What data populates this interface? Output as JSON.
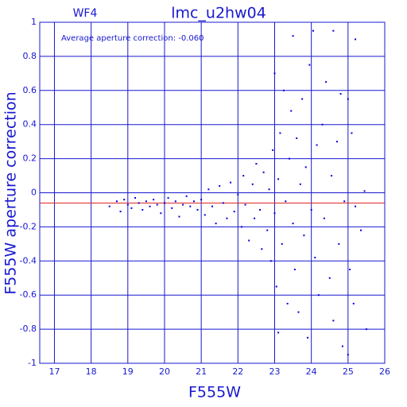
{
  "chart_data": {
    "type": "scatter",
    "title": "lmc_u2hw04",
    "subtitle": "WF4",
    "annotation": "Average aperture correction: -0.060",
    "x_label": "F555W",
    "y_label": "F555W aperture correction",
    "color": "#0000e0",
    "average": -0.06,
    "average_color": "#e02020",
    "grid": true,
    "xlim": [
      16.6,
      26
    ],
    "ylim": [
      -1,
      1
    ],
    "xticks": [
      17,
      18,
      19,
      20,
      21,
      22,
      23,
      24,
      25,
      26
    ],
    "yticks": [
      -1,
      -0.8,
      -0.6,
      -0.4,
      -0.2,
      0,
      0.2,
      0.4,
      0.6,
      0.8,
      1
    ],
    "x": [
      18.5,
      18.7,
      18.8,
      18.9,
      19.0,
      19.1,
      19.2,
      19.3,
      19.4,
      19.5,
      19.6,
      19.7,
      19.8,
      19.9,
      20.0,
      20.1,
      20.2,
      20.3,
      20.4,
      20.5,
      20.6,
      20.7,
      20.8,
      20.9,
      21.0,
      21.1,
      21.2,
      21.3,
      21.4,
      21.5,
      21.6,
      21.7,
      21.8,
      21.9,
      22.0,
      22.1,
      22.15,
      22.2,
      22.3,
      22.4,
      22.45,
      22.5,
      22.6,
      22.65,
      22.7,
      22.8,
      22.85,
      22.9,
      22.95,
      23.0,
      23.0,
      23.05,
      23.1,
      23.1,
      23.15,
      23.2,
      23.25,
      23.3,
      23.35,
      23.4,
      23.45,
      23.5,
      23.5,
      23.55,
      23.6,
      23.65,
      23.7,
      23.75,
      23.8,
      23.85,
      23.9,
      23.95,
      24.0,
      24.05,
      24.1,
      24.15,
      24.2,
      24.3,
      24.35,
      24.4,
      24.5,
      24.55,
      24.6,
      24.7,
      24.75,
      24.8,
      24.85,
      24.9,
      25.0,
      25.05,
      25.1,
      25.15,
      25.2,
      25.35,
      25.5,
      25.45,
      25.0,
      25.2,
      24.6
    ],
    "values": [
      -0.08,
      -0.05,
      -0.11,
      -0.04,
      -0.07,
      -0.09,
      -0.03,
      -0.06,
      -0.1,
      -0.05,
      -0.08,
      -0.04,
      -0.07,
      -0.12,
      -0.06,
      -0.03,
      -0.09,
      -0.05,
      -0.14,
      -0.07,
      -0.02,
      -0.08,
      -0.05,
      -0.1,
      -0.04,
      -0.13,
      0.02,
      -0.08,
      -0.18,
      0.04,
      -0.06,
      -0.15,
      0.06,
      -0.11,
      -0.01,
      -0.2,
      0.1,
      -0.07,
      -0.28,
      0.05,
      -0.15,
      0.17,
      -0.1,
      -0.33,
      0.12,
      -0.22,
      0.02,
      -0.4,
      0.25,
      -0.12,
      0.7,
      -0.55,
      0.08,
      -0.82,
      0.35,
      -0.3,
      0.6,
      -0.05,
      -0.65,
      0.2,
      0.48,
      -0.18,
      0.92,
      -0.45,
      0.32,
      -0.7,
      0.05,
      0.55,
      -0.25,
      0.15,
      -0.85,
      0.75,
      -0.1,
      0.95,
      -0.38,
      0.28,
      -0.6,
      0.4,
      -0.15,
      0.65,
      -0.5,
      0.1,
      -0.75,
      0.3,
      -0.3,
      0.58,
      -0.9,
      -0.05,
      0.55,
      -0.45,
      0.35,
      -0.65,
      -0.08,
      -0.22,
      -0.8,
      0.01,
      -0.95,
      0.9,
      0.95
    ]
  }
}
